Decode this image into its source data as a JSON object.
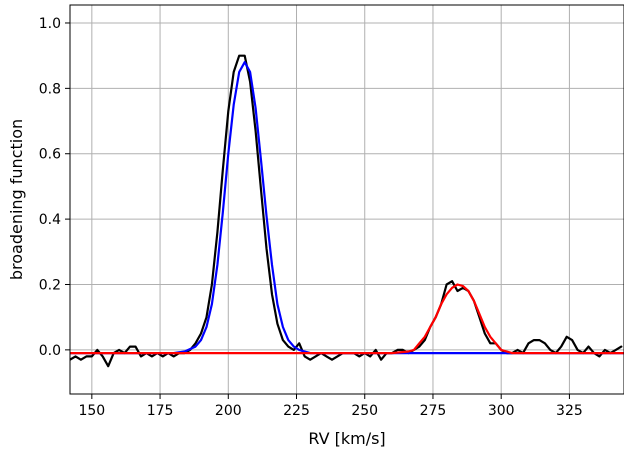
{
  "chart_data": {
    "type": "line",
    "title": "",
    "xlabel": "RV [km/s]",
    "ylabel": "broadening function",
    "xlim": [
      142,
      345
    ],
    "ylim": [
      -0.135,
      1.055
    ],
    "xticks": [
      150,
      175,
      200,
      225,
      250,
      275,
      300,
      325
    ],
    "yticks": [
      0.0,
      0.2,
      0.4,
      0.6,
      0.8,
      1.0
    ],
    "xtick_labels": [
      "150",
      "175",
      "200",
      "225",
      "250",
      "275",
      "300",
      "325"
    ],
    "ytick_labels": [
      "0.0",
      "0.2",
      "0.4",
      "0.6",
      "0.8",
      "1.0"
    ],
    "grid": true,
    "series": [
      {
        "color": "#000000",
        "x": [
          142,
          144,
          146,
          148,
          150,
          152,
          154,
          156,
          158,
          160,
          162,
          164,
          166,
          168,
          170,
          172,
          174,
          176,
          178,
          180,
          182,
          184,
          186,
          188,
          190,
          192,
          194,
          196,
          198,
          200,
          202,
          204,
          206,
          208,
          210,
          212,
          214,
          216,
          218,
          220,
          222,
          224,
          226,
          228,
          230,
          232,
          234,
          236,
          238,
          240,
          242,
          244,
          246,
          248,
          250,
          252,
          254,
          256,
          258,
          260,
          262,
          264,
          266,
          268,
          270,
          272,
          274,
          276,
          278,
          280,
          282,
          284,
          286,
          288,
          290,
          292,
          294,
          296,
          298,
          300,
          302,
          304,
          306,
          308,
          310,
          312,
          314,
          316,
          318,
          320,
          322,
          324,
          326,
          328,
          330,
          332,
          334,
          336,
          338,
          340,
          342,
          344
        ],
        "values": [
          -0.03,
          -0.02,
          -0.03,
          -0.02,
          -0.02,
          0.0,
          -0.02,
          -0.05,
          -0.01,
          0.0,
          -0.01,
          0.01,
          0.01,
          -0.02,
          -0.01,
          -0.02,
          -0.01,
          -0.02,
          -0.01,
          -0.02,
          -0.01,
          -0.01,
          0.0,
          0.02,
          0.05,
          0.1,
          0.2,
          0.36,
          0.55,
          0.73,
          0.85,
          0.9,
          0.9,
          0.82,
          0.67,
          0.49,
          0.31,
          0.17,
          0.08,
          0.03,
          0.01,
          0.0,
          0.02,
          -0.02,
          -0.03,
          -0.02,
          -0.01,
          -0.02,
          -0.03,
          -0.02,
          -0.01,
          -0.01,
          -0.01,
          -0.02,
          -0.01,
          -0.02,
          0.0,
          -0.03,
          -0.01,
          -0.01,
          0.0,
          0.0,
          -0.01,
          0.0,
          0.01,
          0.03,
          0.07,
          0.1,
          0.14,
          0.2,
          0.21,
          0.18,
          0.19,
          0.18,
          0.15,
          0.1,
          0.05,
          0.02,
          0.02,
          0.0,
          -0.01,
          -0.01,
          0.0,
          -0.01,
          0.02,
          0.03,
          0.03,
          0.02,
          0.0,
          -0.01,
          0.01,
          0.04,
          0.03,
          0.0,
          -0.01,
          0.01,
          -0.01,
          -0.02,
          0.0,
          -0.01,
          0.0,
          0.01
        ]
      },
      {
        "color": "#0000ff",
        "x": [
          142,
          150,
          160,
          170,
          180,
          184,
          188,
          190,
          192,
          194,
          196,
          198,
          200,
          202,
          204,
          206,
          208,
          210,
          212,
          214,
          216,
          218,
          220,
          222,
          224,
          226,
          228,
          230,
          240,
          250,
          260,
          270,
          280,
          290,
          300,
          310,
          320,
          330,
          345
        ],
        "values": [
          -0.01,
          -0.01,
          -0.01,
          -0.01,
          -0.01,
          -0.005,
          0.01,
          0.03,
          0.07,
          0.14,
          0.26,
          0.42,
          0.6,
          0.75,
          0.85,
          0.88,
          0.85,
          0.74,
          0.58,
          0.41,
          0.26,
          0.14,
          0.07,
          0.03,
          0.01,
          0.0,
          -0.005,
          -0.01,
          -0.01,
          -0.01,
          -0.01,
          -0.01,
          -0.01,
          -0.01,
          -0.01,
          -0.01,
          -0.01,
          -0.01,
          -0.01
        ]
      },
      {
        "color": "#ff0000",
        "x": [
          142,
          160,
          180,
          200,
          220,
          240,
          260,
          266,
          268,
          270,
          272,
          274,
          276,
          278,
          280,
          282,
          284,
          286,
          288,
          290,
          292,
          294,
          296,
          298,
          300,
          302,
          304,
          320,
          345
        ],
        "values": [
          -0.01,
          -0.01,
          -0.01,
          -0.01,
          -0.01,
          -0.01,
          -0.01,
          -0.005,
          0.0,
          0.02,
          0.04,
          0.07,
          0.1,
          0.14,
          0.17,
          0.19,
          0.2,
          0.195,
          0.18,
          0.15,
          0.11,
          0.07,
          0.04,
          0.02,
          0.0,
          -0.005,
          -0.01,
          -0.01,
          -0.01
        ]
      }
    ]
  }
}
